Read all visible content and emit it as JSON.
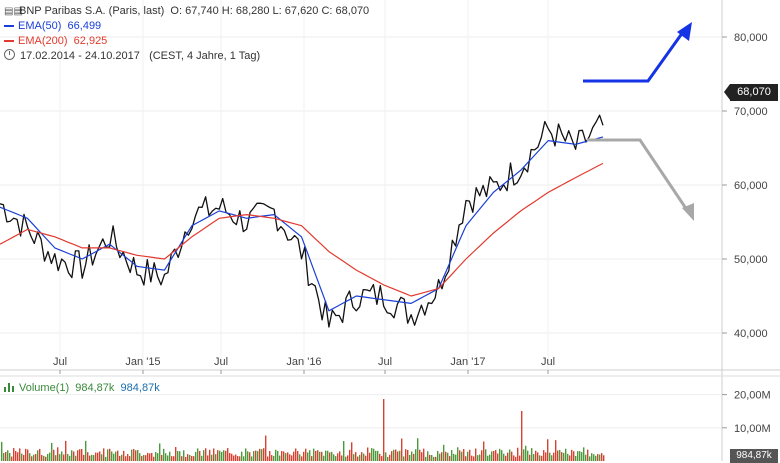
{
  "header": {
    "instrument": "BNP Paribas S.A. (Paris, last)",
    "ohlc": "O: 67,740  H: 68,280  L: 67,620  C: 68,070",
    "ema50_label": "EMA(50)",
    "ema50_value": "66,499",
    "ema200_label": "EMA(200)",
    "ema200_value": "62,925",
    "range": "17.02.2014 - 24.10.2017",
    "range_note": "(CEST, 4 Jahre, 1 Tag)"
  },
  "price_tag": "68,070",
  "volume": {
    "label": "Volume(1)",
    "value1": "984,87k",
    "value2": "984,87k",
    "tag": "984,87k"
  },
  "colors": {
    "price": "#111111",
    "ema50": "#1a3fd6",
    "ema200": "#e23a2e",
    "arrow_up": "#1533e6",
    "arrow_down": "#a8a8a8",
    "vol_up": "#4a9a3a",
    "vol_down": "#d84030"
  },
  "chart_data": {
    "type": "line",
    "x_ticks": [
      "Jul",
      "Jan '15",
      "Jul",
      "Jan '16",
      "Jul",
      "Jan '17",
      "Jul"
    ],
    "x": [
      "2014-02",
      "2014-04",
      "2014-06",
      "2014-08",
      "2014-10",
      "2014-12",
      "2015-02",
      "2015-04",
      "2015-06",
      "2015-08",
      "2015-10",
      "2015-12",
      "2016-02",
      "2016-04",
      "2016-06",
      "2016-08",
      "2016-10",
      "2016-12",
      "2017-02",
      "2017-04",
      "2017-06",
      "2017-08",
      "2017-10"
    ],
    "y_ticks": [
      "80,000",
      "70,000",
      "60,000",
      "50,000",
      "40,000"
    ],
    "ylim": [
      35,
      85
    ],
    "series": [
      {
        "name": "BNP Paribas S.A.",
        "values": [
          57.5,
          54.0,
          50.0,
          49.0,
          53.0,
          48.5,
          47.5,
          56.0,
          57.0,
          55.0,
          56.5,
          51.0,
          41.0,
          45.0,
          45.0,
          42.5,
          46.0,
          58.0,
          59.5,
          62.5,
          67.5,
          65.0,
          68.07
        ]
      },
      {
        "name": "EMA(50)",
        "values": [
          57.0,
          55.5,
          51.5,
          50.0,
          52.0,
          49.0,
          48.5,
          54.5,
          56.5,
          55.5,
          56.0,
          53.0,
          43.0,
          45.0,
          44.5,
          44.0,
          46.0,
          54.5,
          59.0,
          62.0,
          66.0,
          65.5,
          66.5
        ]
      },
      {
        "name": "EMA(200)",
        "values": [
          52.0,
          54.0,
          53.0,
          51.5,
          51.5,
          50.5,
          50.0,
          53.0,
          55.5,
          56.0,
          55.5,
          54.5,
          51.0,
          48.5,
          46.5,
          45.0,
          46.0,
          50.0,
          53.5,
          56.5,
          59.0,
          61.0,
          62.925
        ]
      }
    ],
    "volume": {
      "y_ticks": [
        "20,00M",
        "10,00M"
      ],
      "ylim": [
        0,
        25
      ]
    }
  }
}
